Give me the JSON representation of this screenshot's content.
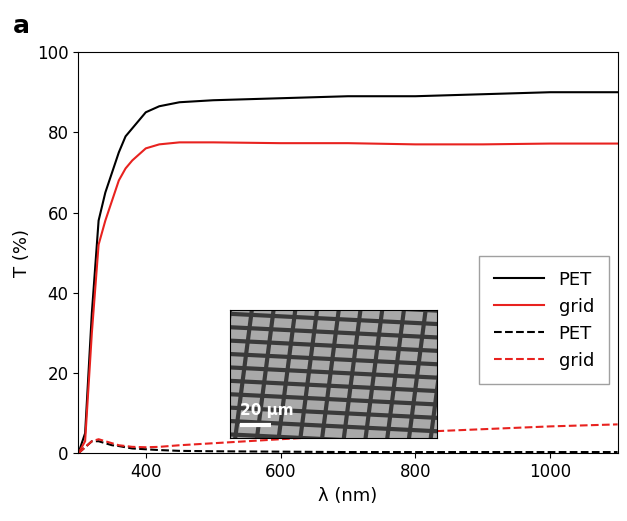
{
  "chart_data": {
    "type": "line",
    "panel_label": "a",
    "inset_label": "20 μm",
    "x_label": "λ (nm)",
    "y_label": "T (%)",
    "x": [
      300,
      310,
      320,
      330,
      340,
      350,
      360,
      370,
      380,
      400,
      420,
      450,
      500,
      600,
      700,
      800,
      900,
      1000,
      1100
    ],
    "series": [
      {
        "name": "PET",
        "color": "#000000",
        "line_style": "solid",
        "values": [
          0,
          5,
          35,
          58,
          65,
          70,
          75,
          79,
          81,
          85,
          86.5,
          87.5,
          88,
          88.5,
          89,
          89,
          89.5,
          90,
          90
        ]
      },
      {
        "name": "grid",
        "color": "#e8221f",
        "line_style": "solid",
        "values": [
          0,
          3,
          30,
          52,
          58,
          63,
          68,
          71,
          73,
          76,
          77,
          77.5,
          77.5,
          77.3,
          77.3,
          77,
          77,
          77.2,
          77.2
        ]
      },
      {
        "name": "PET",
        "color": "#000000",
        "line_style": "dashed",
        "values": [
          0,
          1.5,
          3,
          3,
          2.5,
          2,
          1.8,
          1.5,
          1.2,
          1,
          0.8,
          0.6,
          0.5,
          0.4,
          0.3,
          0.3,
          0.3,
          0.3,
          0.3
        ]
      },
      {
        "name": "grid",
        "color": "#e8221f",
        "line_style": "dashed",
        "values": [
          0,
          1.5,
          3,
          3.5,
          3,
          2.5,
          2,
          1.8,
          1.6,
          1.5,
          1.6,
          2,
          2.5,
          3.5,
          4.5,
          5.3,
          6,
          6.7,
          7.2
        ]
      }
    ],
    "xlim": [
      300,
      1100
    ],
    "xticks": [
      400,
      600,
      800,
      1000
    ],
    "ylim": [
      0,
      100
    ],
    "yticks": [
      0,
      20,
      40,
      60,
      80,
      100
    ],
    "legend": "lower right"
  }
}
